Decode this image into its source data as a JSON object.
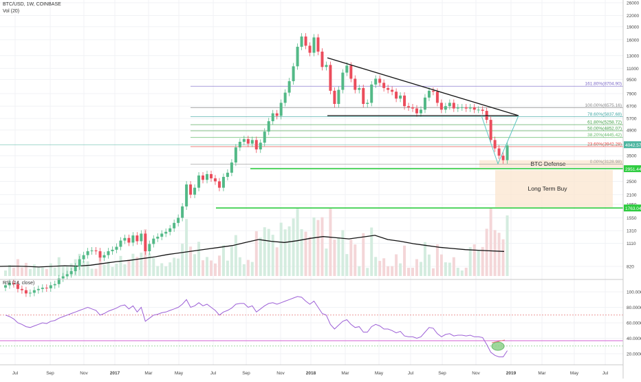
{
  "header": {
    "symbol_line": "BTC/USD, 1W, COINBASE",
    "volume_label": "Vol (20)",
    "rsi_label": "RSI (14, close)"
  },
  "chart_data": {
    "type": "candlestick",
    "price_axis": {
      "scale": "log",
      "ticks": [
        820,
        1110,
        1310,
        1550,
        1850,
        2100,
        2500,
        3000,
        3500,
        4042.57,
        4900,
        5700,
        6700,
        7900,
        9500,
        11000,
        13000,
        16000,
        19000,
        22000,
        26000
      ]
    },
    "time_axis": {
      "ticks": [
        "Jul",
        "Sep",
        "Nov",
        "2017",
        "Mar",
        "May",
        "Jul",
        "Sep",
        "Nov",
        "2018",
        "Mar",
        "May",
        "Jul",
        "Sep",
        "Nov",
        "2019",
        "Mar",
        "May",
        "Jul"
      ]
    },
    "fib_levels": [
      {
        "label": "161.80%(8704.90)",
        "value": 8704.9,
        "color": "#7b68c8"
      },
      {
        "label": "100.00%(6575.16)",
        "value": 6575.16,
        "color": "#888888"
      },
      {
        "label": "78.60%(5837.68)",
        "value": 5837.68,
        "color": "#3fa7a3"
      },
      {
        "label": "61.80%(5258.72)",
        "value": 5258.72,
        "color": "#43a047"
      },
      {
        "label": "50.00%(4852.07)",
        "value": 4852.07,
        "color": "#43a047"
      },
      {
        "label": "38.20%(4445.42)",
        "value": 4445.42,
        "color": "#66bb6a"
      },
      {
        "label": "23.60%(3942.28)",
        "value": 3942.28,
        "color": "#e53935"
      },
      {
        "label": "0.00%(3128.98)",
        "value": 3128.98,
        "color": "#999999"
      }
    ],
    "current_price": {
      "label": "4042.57",
      "value": 4042.57,
      "color": "#4db6a0"
    },
    "support_lines": [
      {
        "label": "2951.44",
        "value": 2951.44,
        "color": "#2ecc40"
      },
      {
        "label": "1763.04",
        "value": 1763.04,
        "color": "#2ecc40"
      }
    ],
    "zones": [
      {
        "label": "BTC Defense",
        "from": 3000,
        "to": 3300
      },
      {
        "label": "Long Term Buy",
        "from": 1780,
        "to": 2900
      }
    ],
    "weekly_closes": [
      640,
      660,
      650,
      610,
      600,
      575,
      580,
      600,
      610,
      620,
      615,
      640,
      650,
      700,
      720,
      740,
      770,
      820,
      900,
      950,
      1000,
      1010,
      1000,
      920,
      950,
      1000,
      1020,
      1060,
      1150,
      1190,
      1120,
      1230,
      1140,
      1260,
      1000,
      1100,
      1180,
      1210,
      1260,
      1290,
      1350,
      1450,
      1550,
      1800,
      2400,
      2100,
      2300,
      2700,
      2550,
      2750,
      2600,
      2500,
      2300,
      2650,
      2800,
      3200,
      3900,
      4200,
      4350,
      4100,
      4300,
      3800,
      4150,
      4800,
      5500,
      6100,
      5900,
      7000,
      8000,
      9300,
      11300,
      14600,
      16700,
      14800,
      13500,
      16500,
      13700,
      11200,
      11500,
      8200,
      6900,
      8300,
      10400,
      11400,
      9600,
      8300,
      8500,
      6900,
      7000,
      8900,
      9600,
      9100,
      8500,
      8300,
      8100,
      7400,
      7700,
      6700,
      6600,
      6500,
      6100,
      6400,
      7500,
      8200,
      8100,
      7000,
      6400,
      6700,
      7000,
      6500,
      6600,
      6600,
      6500,
      6600,
      6400,
      6400,
      6300,
      5600,
      4300,
      3850,
      3500,
      3300,
      4000
    ],
    "volume_ma": [
      800,
      805,
      800,
      790,
      800,
      810,
      805,
      820,
      850,
      880,
      900,
      930,
      960,
      1000,
      1030,
      1060,
      1090,
      1120,
      1150,
      1200,
      1250,
      1220,
      1200,
      1230,
      1270,
      1300,
      1280,
      1260,
      1290,
      1320,
      1250,
      1220,
      1180,
      1150,
      1120,
      1100,
      1080,
      1070,
      1060,
      1050
    ],
    "rsi": {
      "ticks": [
        20,
        40,
        60,
        80,
        100
      ],
      "overbought": 70,
      "oversold": 30,
      "values": [
        70,
        68,
        65,
        60,
        58,
        55,
        54,
        56,
        58,
        60,
        59,
        62,
        63,
        66,
        68,
        70,
        72,
        74,
        76,
        78,
        80,
        78,
        76,
        70,
        72,
        75,
        77,
        79,
        82,
        83,
        78,
        82,
        74,
        80,
        62,
        66,
        70,
        71,
        73,
        74,
        76,
        78,
        80,
        84,
        90,
        80,
        82,
        86,
        82,
        84,
        80,
        76,
        70,
        74,
        76,
        79,
        84,
        85,
        85,
        80,
        82,
        74,
        78,
        82,
        85,
        86,
        84,
        86,
        88,
        90,
        92,
        94,
        93,
        88,
        84,
        88,
        80,
        72,
        70,
        58,
        52,
        57,
        62,
        64,
        58,
        54,
        55,
        48,
        48,
        55,
        58,
        56,
        52,
        52,
        50,
        47,
        49,
        43,
        42,
        42,
        40,
        42,
        48,
        54,
        53,
        46,
        42,
        45,
        46,
        43,
        44,
        44,
        43,
        44,
        42,
        42,
        41,
        32,
        22,
        18,
        16,
        16,
        24
      ]
    }
  }
}
